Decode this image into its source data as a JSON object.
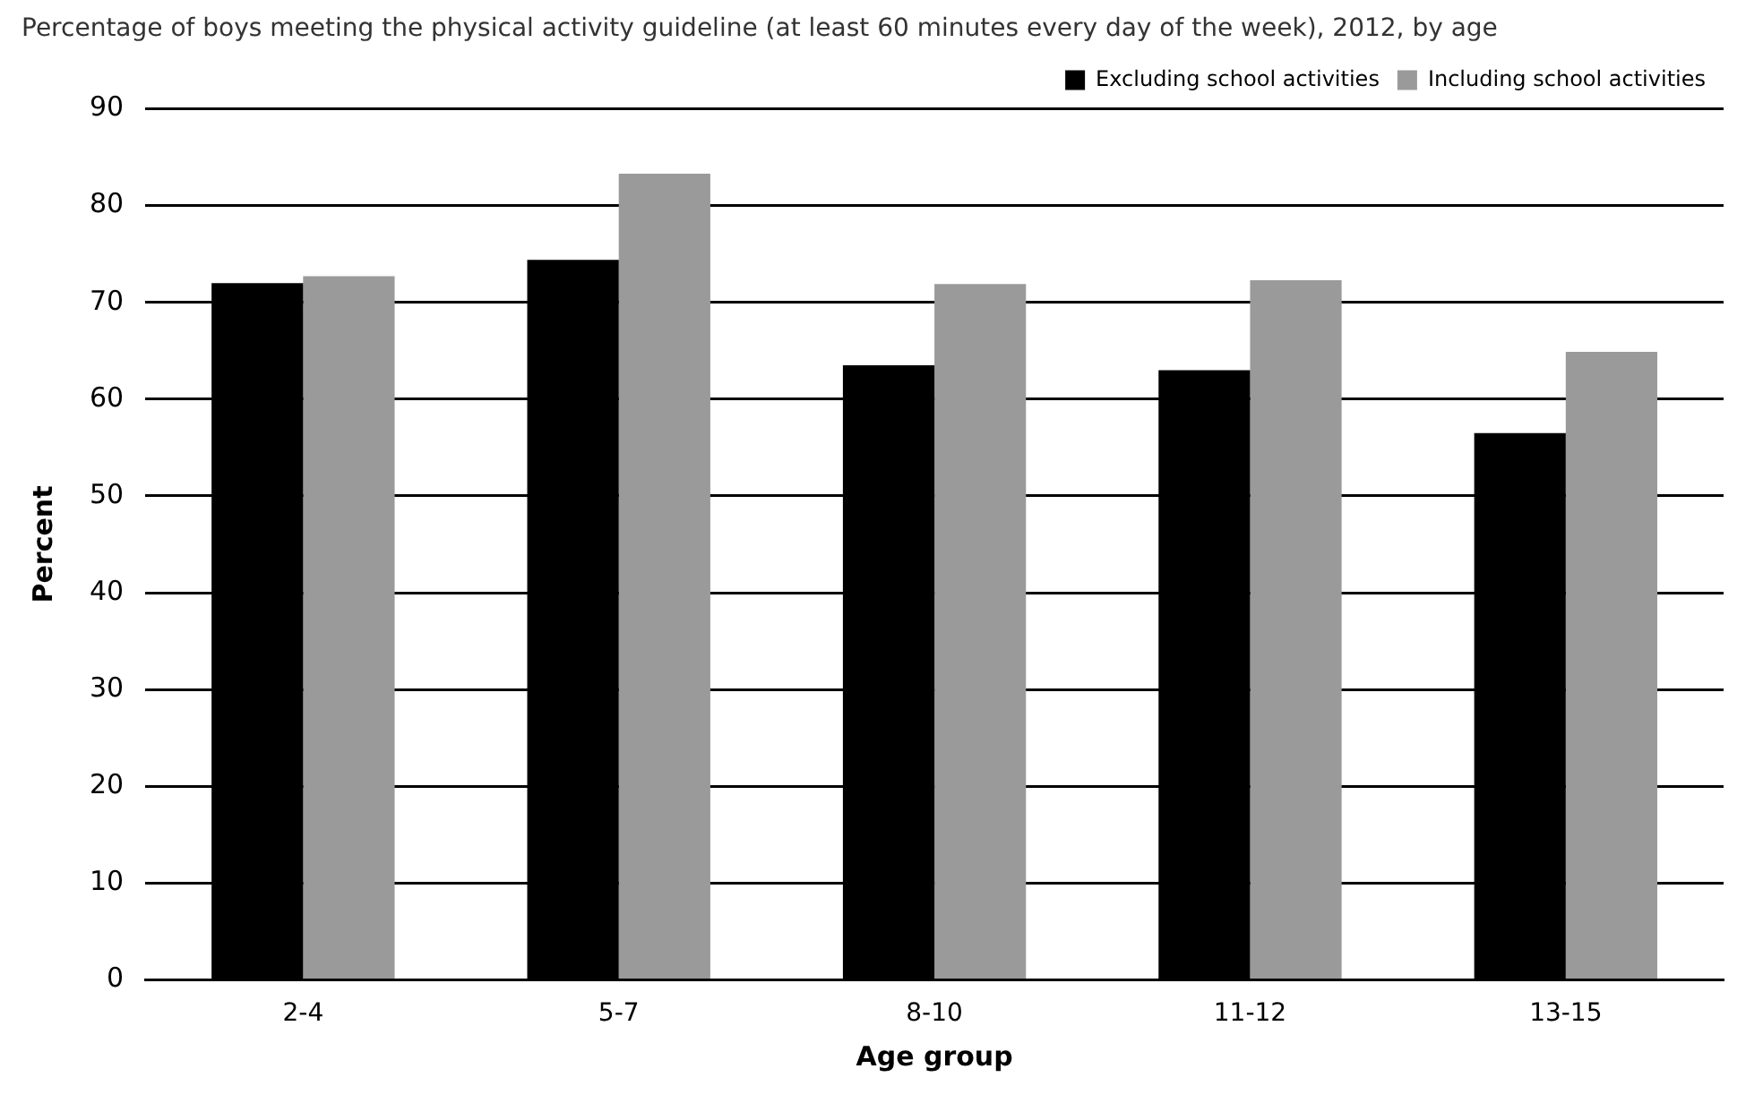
{
  "chart_data": {
    "type": "bar",
    "title": "Percentage of boys meeting the physical activity guideline (at least 60 minutes every day of the week), 2012, by age",
    "xlabel": "Age group",
    "ylabel": "Percent",
    "categories": [
      "2-4",
      "5-7",
      "8-10",
      "11-12",
      "13-15"
    ],
    "series": [
      {
        "name": "Excluding school activities",
        "color": "#000000",
        "values": [
          72,
          74.4,
          63.5,
          63,
          56.5
        ]
      },
      {
        "name": "Including school activities",
        "color": "#9a9a9a",
        "values": [
          72.7,
          83.3,
          71.9,
          72.3,
          64.9
        ]
      }
    ],
    "ylim": [
      0,
      90
    ],
    "yticks": [
      0,
      10,
      20,
      30,
      40,
      50,
      60,
      70,
      80,
      90
    ],
    "grid": "y",
    "legend": "top right"
  }
}
